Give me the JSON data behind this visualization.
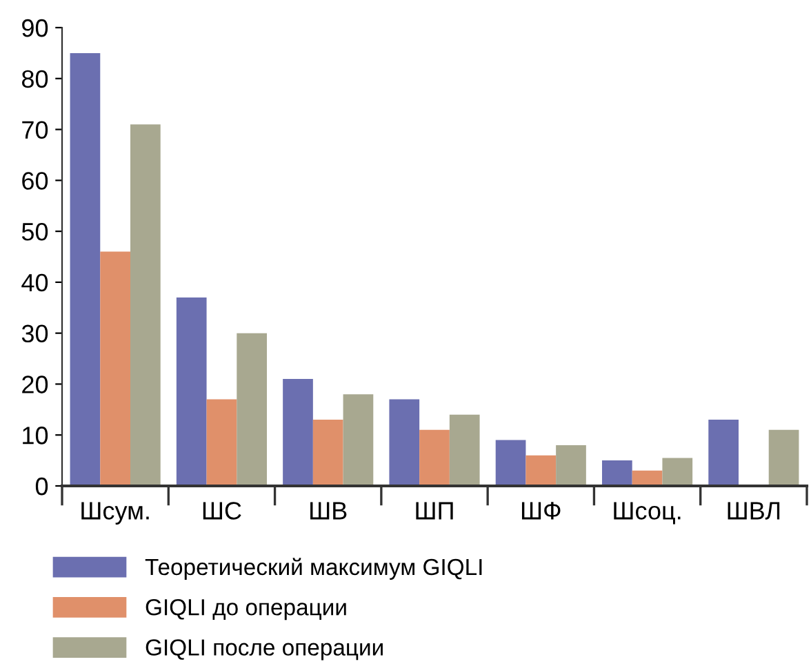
{
  "chart_data": {
    "type": "bar",
    "categories": [
      "Шсум.",
      "ШС",
      "ШВ",
      "ШП",
      "ШФ",
      "Шсоц.",
      "ШВЛ"
    ],
    "series": [
      {
        "name": "Теоретический максимум GIQLI",
        "color": "#6b6fb0",
        "values": [
          85,
          37,
          21,
          17,
          9,
          5,
          13
        ]
      },
      {
        "name": "GIQLI до операции",
        "color": "#e0906a",
        "values": [
          46,
          17,
          13,
          11,
          6,
          3,
          null
        ]
      },
      {
        "name": "GIQLI после операции",
        "color": "#a8a890",
        "values": [
          71,
          30,
          18,
          14,
          8,
          5.5,
          11
        ]
      }
    ],
    "ylim": [
      0,
      90
    ],
    "yticks": [
      0,
      10,
      20,
      30,
      40,
      50,
      60,
      70,
      80,
      90
    ],
    "grid": false,
    "legend": "bottom"
  }
}
